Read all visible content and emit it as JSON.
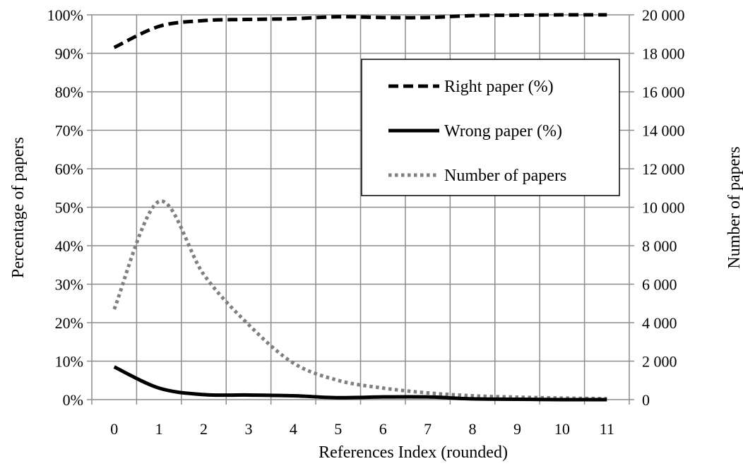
{
  "chart_data": {
    "type": "line",
    "xlabel": "References Index (rounded)",
    "ylabel": "Percentage of papers",
    "y2label": "Number of papers",
    "categories": [
      "0",
      "1",
      "2",
      "3",
      "4",
      "5",
      "6",
      "7",
      "8",
      "9",
      "10",
      "11"
    ],
    "x_ticks": [
      "0",
      "1",
      "2",
      "3",
      "4",
      "5",
      "6",
      "7",
      "8",
      "9",
      "10",
      "11"
    ],
    "y_ticks": [
      "0%",
      "10%",
      "20%",
      "30%",
      "40%",
      "50%",
      "60%",
      "70%",
      "80%",
      "90%",
      "100%"
    ],
    "y2_ticks": [
      "0",
      "2 000",
      "4 000",
      "6 000",
      "8 000",
      "10 000",
      "12 000",
      "14 000",
      "16 000",
      "18 000",
      "20 000"
    ],
    "ylim": [
      0,
      100
    ],
    "y2lim": [
      0,
      20000
    ],
    "grid": true,
    "legend_position": "upper-right",
    "series": [
      {
        "name": "Right paper (%)",
        "axis": "left",
        "style": "dashed",
        "color": "#000000",
        "values": [
          91.5,
          97,
          98.5,
          98.8,
          99,
          99.5,
          99.3,
          99.3,
          99.8,
          99.9,
          100,
          100
        ]
      },
      {
        "name": "Wrong paper (%)",
        "axis": "left",
        "style": "solid",
        "color": "#000000",
        "values": [
          8.5,
          3,
          1.3,
          1.2,
          1.0,
          0.5,
          0.7,
          0.7,
          0.2,
          0.1,
          0.0,
          0.0
        ]
      },
      {
        "name": "Number of papers",
        "axis": "right",
        "style": "dotted",
        "color": "#808080",
        "values": [
          4700,
          10300,
          6500,
          3900,
          1900,
          1000,
          600,
          350,
          200,
          130,
          80,
          50
        ]
      }
    ]
  }
}
